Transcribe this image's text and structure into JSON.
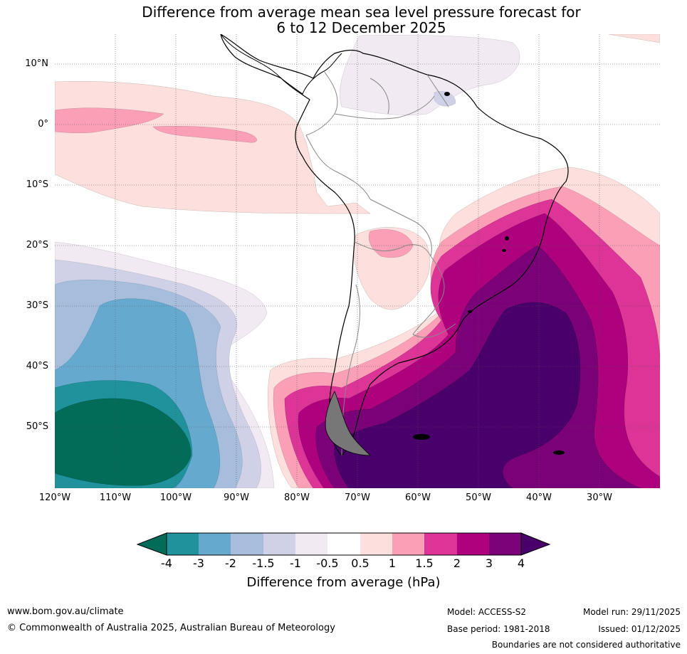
{
  "title": {
    "line1": "Difference from average mean sea level pressure forecast for",
    "line2": "6 to 12 December 2025"
  },
  "map": {
    "lat_labels": [
      "10°N",
      "0°",
      "10°S",
      "20°S",
      "30°S",
      "40°S",
      "50°S"
    ],
    "lon_labels": [
      "120°W",
      "110°W",
      "100°W",
      "90°W",
      "80°W",
      "70°W",
      "60°W",
      "50°W",
      "40°W",
      "30°W"
    ]
  },
  "colorbar": {
    "ticks": [
      "-4",
      "-3",
      "-2",
      "-1.5",
      "-1",
      "-0.5",
      "0.5",
      "1",
      "1.5",
      "2",
      "3",
      "4"
    ],
    "colors": {
      "below_min": "#026c58",
      "c1": "#1f929c",
      "c2": "#66a9cf",
      "c3": "#a6bddb",
      "c4": "#d0d1e6",
      "c5": "#f1eaf2",
      "c6": "#ffffff",
      "c7": "#fde0dd",
      "c8": "#fa9fb5",
      "c9": "#dd3497",
      "c10": "#ae017e",
      "c11": "#7a0177",
      "above_max": "#49006a"
    },
    "label": "Difference from average (hPa)"
  },
  "footer": {
    "website": "www.bom.gov.au/climate",
    "copyright": "© Commonwealth of Australia 2025, Australian Bureau of Meteorology",
    "model": "Model: ACCESS-S2",
    "base_period": "Base period: 1981-2018",
    "model_run": "Model run: 29/11/2025",
    "issued": "Issued: 01/12/2025",
    "disclaimer": "Boundaries are not considered authoritative"
  }
}
